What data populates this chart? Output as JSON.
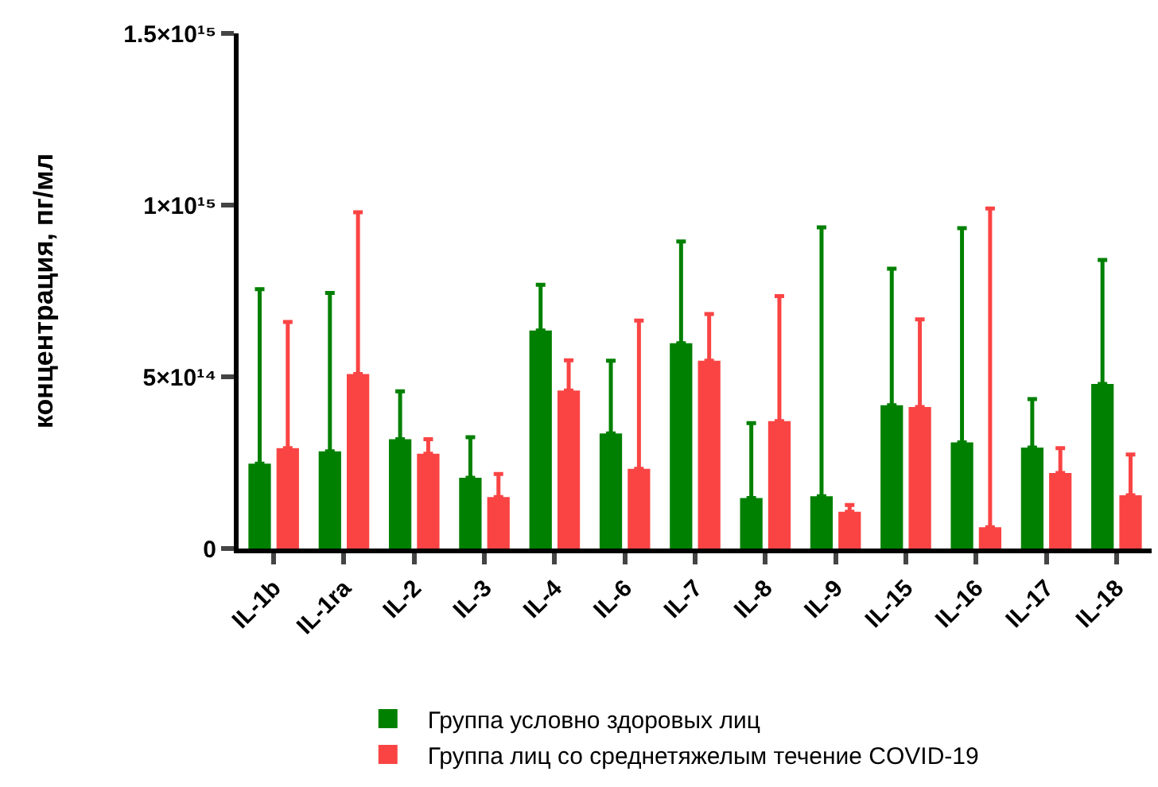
{
  "chart_data": {
    "type": "bar",
    "ylabel": "концентрация, пг/мл",
    "categories": [
      "IL-1b",
      "IL-1ra",
      "IL-2",
      "IL-3",
      "IL-4",
      "IL-6",
      "IL-7",
      "IL-8",
      "IL-9",
      "IL-15",
      "IL-16",
      "IL-17",
      "IL-18"
    ],
    "series": [
      {
        "name": "Группа условно здоровых лиц",
        "color": "#008000",
        "values": [
          247000000000000.0,
          283000000000000.0,
          318000000000000.0,
          206000000000000.0,
          635000000000000.0,
          335000000000000.0,
          598000000000000.0,
          147000000000000.0,
          152000000000000.0,
          417000000000000.0,
          309000000000000.0,
          294000000000000.0,
          479000000000000.0
        ],
        "errors": [
          [
            247000000000000.0,
            755000000000000.0
          ],
          [
            283000000000000.0,
            744000000000000.0
          ],
          [
            318000000000000.0,
            458000000000000.0
          ],
          [
            206000000000000.0,
            324000000000000.0
          ],
          [
            635000000000000.0,
            768000000000000.0
          ],
          [
            335000000000000.0,
            547000000000000.0
          ],
          [
            598000000000000.0,
            894000000000000.0
          ],
          [
            147000000000000.0,
            365000000000000.0
          ],
          [
            152000000000000.0,
            935000000000000.0
          ],
          [
            417000000000000.0,
            815000000000000.0
          ],
          [
            309000000000000.0,
            933000000000000.0
          ],
          [
            294000000000000.0,
            435000000000000.0
          ],
          [
            479000000000000.0,
            840000000000000.0
          ]
        ]
      },
      {
        "name": "Группа лиц со среднетяжелым течение COVID-19",
        "color": "#fa4444",
        "values": [
          292000000000000.0,
          508000000000000.0,
          276000000000000.0,
          150000000000000.0,
          460000000000000.0,
          232000000000000.0,
          547000000000000.0,
          371000000000000.0,
          107000000000000.0,
          412000000000000.0,
          62000000000000.0,
          220000000000000.0,
          155000000000000.0
        ],
        "errors": [
          [
            292000000000000.0,
            660000000000000.0
          ],
          [
            508000000000000.0,
            979000000000000.0
          ],
          [
            276000000000000.0,
            318000000000000.0
          ],
          [
            150000000000000.0,
            217000000000000.0
          ],
          [
            460000000000000.0,
            548000000000000.0
          ],
          [
            232000000000000.0,
            664000000000000.0
          ],
          [
            547000000000000.0,
            683000000000000.0
          ],
          [
            371000000000000.0,
            735000000000000.0
          ],
          [
            107000000000000.0,
            127000000000000.0
          ],
          [
            412000000000000.0,
            667000000000000.0
          ],
          [
            62000000000000.0,
            990000000000000.0
          ],
          [
            220000000000000.0,
            292000000000000.0
          ],
          [
            155000000000000.0,
            274000000000000.0
          ]
        ]
      }
    ],
    "ylim": [
      0,
      1500000000000000.0
    ],
    "yticks": [
      0,
      {
        "value": 500000000000000.0,
        "label": "5×10¹⁴"
      },
      {
        "value": 1000000000000000.0,
        "label": "1×10¹⁵"
      },
      {
        "value": 1500000000000000.0,
        "label": "1.5×10¹⁵"
      }
    ],
    "grid": false,
    "legend": "bottom"
  }
}
